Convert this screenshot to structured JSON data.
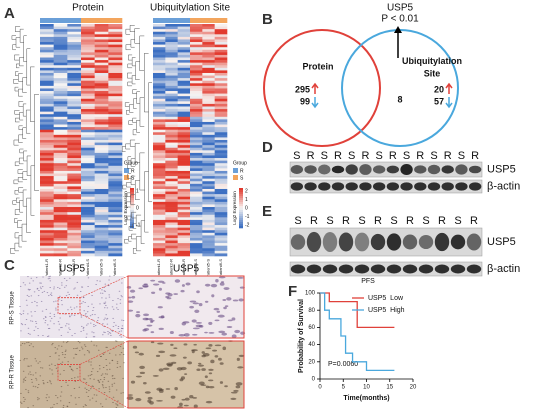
{
  "panels": {
    "A": {
      "label": "A",
      "protein_title": "Protein",
      "ubiquitylation_title": "Ubiquitylation Site",
      "protein_columns": [
        "Patient1-R",
        "Patient2-R",
        "Patient3-R",
        "Patient4-S",
        "Patient5-S",
        "Patient6-S"
      ],
      "ubiquitylation_columns": [
        "Patient1-R",
        "Patient2-R",
        "Patient3-R",
        "Patient4-S",
        "Patient5-S",
        "Patient6-S"
      ],
      "legend_protein": {
        "group_title": "Group",
        "groups": [
          "R",
          "S"
        ],
        "group_colors": [
          "#6a9fd8",
          "#f3a55d"
        ],
        "scale_title": "Log2 Expression",
        "scale_ticks": [
          "1",
          "0",
          "-1"
        ]
      },
      "legend_ubiquitylation": {
        "group_title": "Group",
        "groups": [
          "R",
          "S"
        ],
        "group_colors": [
          "#6a9fd8",
          "#f3a55d"
        ],
        "scale_title": "Log2 Expression",
        "scale_ticks": [
          "2",
          "1",
          "0",
          "-1",
          "-2"
        ]
      }
    },
    "B": {
      "label": "B",
      "gene": "USP5",
      "p_value": "P < 0.01",
      "left_set": "Protein",
      "right_set": "Ubiquitylation Site",
      "left_up": 295,
      "left_down": 99,
      "overlap": 8,
      "right_up": 20,
      "right_down": 57
    },
    "C": {
      "label": "C",
      "left_title": "USP5",
      "right_title": "USP5",
      "top_row": "RP-S Tissue",
      "bottom_row": "RP-R Tissue"
    },
    "D": {
      "label": "D",
      "lanes": [
        "S",
        "R",
        "S",
        "R",
        "S",
        "R",
        "S",
        "R",
        "S",
        "R",
        "S",
        "R",
        "S",
        "R"
      ],
      "target": "USP5",
      "control": "β-actin"
    },
    "E": {
      "label": "E",
      "lanes": [
        "S",
        "R",
        "S",
        "R",
        "S",
        "R",
        "S",
        "R",
        "S",
        "R",
        "S",
        "R"
      ],
      "target": "USP5",
      "control": "β-actin"
    },
    "F": {
      "label": "F",
      "chart": {
        "type": "line",
        "title": "PFS",
        "x_label": "Time(months)",
        "y_label": "Probability of Survival",
        "annotation": "P=0.0060",
        "xlim": [
          0,
          20
        ],
        "xticks": [
          0,
          5,
          10,
          15,
          20
        ],
        "ylim": [
          0,
          100
        ],
        "yticks": [
          0,
          20,
          40,
          60,
          80,
          100
        ],
        "series": [
          {
            "name": "USP5  Low",
            "color": "#e0413a",
            "x": [
              0,
              2,
              2,
              8,
              8,
              16
            ],
            "values": [
              100,
              100,
              90,
              90,
              60,
              60
            ]
          },
          {
            "name": "USP5  High",
            "color": "#4aa8dd",
            "x": [
              0,
              1,
              1,
              2,
              2,
              4.5,
              4.5,
              5.5,
              5.5,
              7,
              7,
              10,
              10,
              16
            ],
            "values": [
              100,
              100,
              80,
              80,
              70,
              70,
              50,
              50,
              30,
              30,
              20,
              20,
              10,
              10
            ]
          }
        ]
      }
    }
  }
}
